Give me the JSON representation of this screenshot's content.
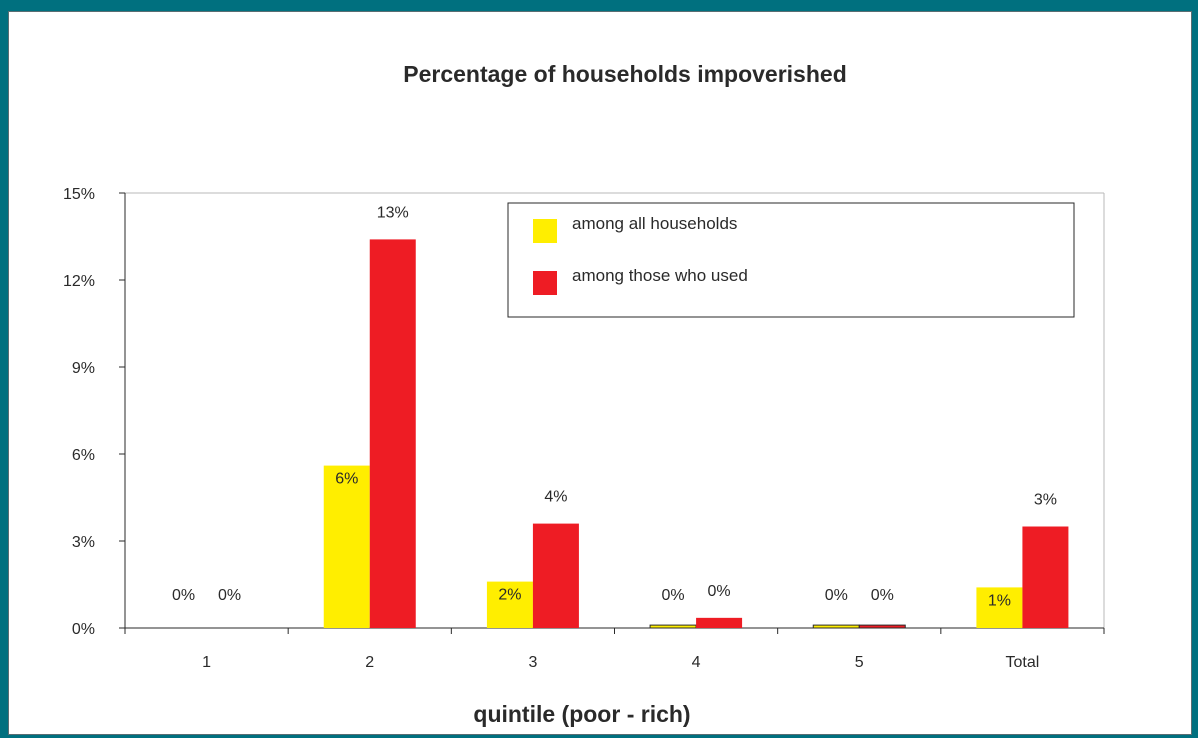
{
  "chart_data": {
    "type": "bar",
    "title": "Percentage of households impoverished",
    "xlabel": "quintile (poor - rich)",
    "ylabel": "",
    "categories": [
      "1",
      "2",
      "3",
      "4",
      "5",
      "Total"
    ],
    "ylim": [
      0,
      15
    ],
    "yticks": [
      "0%",
      "3%",
      "6%",
      "9%",
      "12%",
      "15%"
    ],
    "ytick_values": [
      0,
      3,
      6,
      9,
      12,
      15
    ],
    "legend_position": "top-right",
    "series": [
      {
        "name": "among all households",
        "color": "#ffee00",
        "values": [
          0,
          5.6,
          1.6,
          0.1,
          0.1,
          1.4
        ],
        "labels": [
          "0%",
          "6%",
          "2%",
          "0%",
          "0%",
          "1%"
        ]
      },
      {
        "name": "among those who used",
        "color": "#ee1c24",
        "values": [
          0,
          13.4,
          3.6,
          0.35,
          0.1,
          3.5
        ],
        "labels": [
          "0%",
          "13%",
          "4%",
          "0%",
          "0%",
          "3%"
        ]
      }
    ]
  }
}
